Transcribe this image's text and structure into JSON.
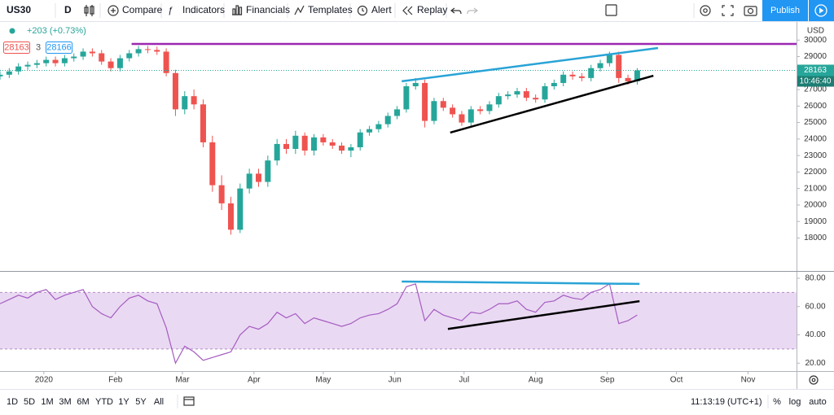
{
  "toolbar": {
    "symbol": "US30",
    "interval": "D",
    "buttons": [
      "Compare",
      "Indicators",
      "Financials",
      "Templates",
      "Alert",
      "Replay"
    ],
    "publish": "Publish"
  },
  "legend": {
    "change": "+203 (+0.73%)",
    "sell": "28163",
    "spread": "3",
    "buy": "28166"
  },
  "price_axis": {
    "currency": "USD",
    "countdown": "10:46:40"
  },
  "bottom_bar": {
    "ranges": [
      "1D",
      "5D",
      "1M",
      "3M",
      "6M",
      "YTD",
      "1Y",
      "5Y",
      "All"
    ],
    "time": "11:13:19 (UTC+1)",
    "options": [
      "%",
      "log",
      "auto"
    ]
  },
  "chart_data": [
    {
      "type": "candlestick",
      "x": [
        -19,
        -15,
        -11,
        -7,
        -3,
        1,
        5,
        9,
        13,
        17,
        21,
        25,
        29,
        33,
        37,
        41,
        45,
        49,
        53,
        57,
        61,
        65,
        69,
        73,
        77,
        81,
        85,
        89,
        93,
        97,
        101,
        105,
        109,
        113,
        117,
        121,
        125,
        129,
        133,
        137,
        141,
        145,
        149,
        153,
        157,
        161,
        165,
        169,
        173,
        177,
        181,
        185,
        189,
        193,
        197,
        201,
        205,
        209,
        213,
        217,
        221,
        225,
        229,
        233,
        237,
        241,
        245,
        249,
        253,
        257
      ],
      "open": [
        27800,
        27900,
        28100,
        28400,
        28500,
        28600,
        28800,
        28600,
        28900,
        29000,
        29300,
        29200,
        28700,
        28300,
        28900,
        29200,
        29450,
        29400,
        29300,
        28000,
        25800,
        26600,
        26100,
        23800,
        21200,
        20100,
        18500,
        21000,
        21900,
        21400,
        22700,
        23700,
        23400,
        24200,
        23300,
        24100,
        23800,
        23600,
        23300,
        23500,
        24400,
        24600,
        24900,
        25400,
        25800,
        27200,
        27400,
        25100,
        26300,
        25900,
        25500,
        25000,
        25800,
        25700,
        26100,
        26600,
        26700,
        26900,
        26500,
        26400,
        27200,
        27400,
        27900,
        27800,
        27700,
        28300,
        28600,
        29100,
        27700,
        27500
      ],
      "high": [
        28100,
        28300,
        28600,
        28700,
        28800,
        29000,
        29000,
        29100,
        29200,
        29500,
        29500,
        29400,
        28900,
        29100,
        29400,
        29650,
        29650,
        29600,
        29500,
        28200,
        26900,
        27000,
        26400,
        24200,
        21800,
        20500,
        21300,
        22200,
        22200,
        23000,
        24000,
        24000,
        24500,
        24400,
        24300,
        24300,
        24000,
        23800,
        23700,
        24600,
        24800,
        25100,
        25600,
        26000,
        27400,
        27700,
        27600,
        26500,
        26500,
        26100,
        25700,
        26000,
        26000,
        26300,
        26800,
        26900,
        27100,
        27100,
        26700,
        27400,
        27600,
        28100,
        28100,
        28000,
        28500,
        28800,
        29300,
        29300,
        27900,
        28300
      ],
      "low": [
        27600,
        27700,
        27900,
        28200,
        28300,
        28400,
        28400,
        28400,
        28700,
        28800,
        29000,
        28500,
        28100,
        28100,
        28700,
        29000,
        29200,
        29100,
        27800,
        25400,
        25500,
        25800,
        23500,
        20800,
        19700,
        18200,
        18300,
        20700,
        21100,
        21100,
        22400,
        23100,
        23100,
        23000,
        23000,
        23600,
        23400,
        23100,
        22900,
        23300,
        24200,
        24400,
        24700,
        25200,
        25600,
        27000,
        24700,
        24900,
        25700,
        25300,
        24800,
        24800,
        25500,
        25500,
        25900,
        26400,
        26500,
        26300,
        26200,
        26200,
        27000,
        27200,
        27600,
        27500,
        27500,
        28100,
        28400,
        27400,
        27300,
        27300
      ],
      "close": [
        27900,
        28100,
        28400,
        28500,
        28600,
        28800,
        28600,
        28900,
        29000,
        29300,
        29200,
        28700,
        28300,
        28900,
        29200,
        29450,
        29400,
        29300,
        28000,
        25800,
        26600,
        26100,
        23800,
        21200,
        20100,
        18500,
        21000,
        21900,
        21400,
        22700,
        23700,
        23400,
        24200,
        23300,
        24100,
        23800,
        23600,
        23300,
        23500,
        24400,
        24600,
        24900,
        25400,
        25800,
        27200,
        27400,
        25100,
        26300,
        25900,
        25500,
        25000,
        25800,
        25700,
        26100,
        26600,
        26700,
        26900,
        26500,
        26400,
        27200,
        27400,
        27900,
        27800,
        27700,
        28300,
        28600,
        29100,
        27700,
        27500,
        28163
      ],
      "colors": {
        "up": "#26a69a",
        "down": "#ef5350"
      },
      "last_price": 28163,
      "xlim": [
        -19,
        326
      ],
      "xticks": [
        {
          "value": 0,
          "label": "2020"
        },
        {
          "value": 31,
          "label": "Feb"
        },
        {
          "value": 60,
          "label": "Mar"
        },
        {
          "value": 91,
          "label": "Apr"
        },
        {
          "value": 121,
          "label": "May"
        },
        {
          "value": 152,
          "label": "Jun"
        },
        {
          "value": 182,
          "label": "Jul"
        },
        {
          "value": 213,
          "label": "Aug"
        },
        {
          "value": 244,
          "label": "Sep"
        },
        {
          "value": 274,
          "label": "Oct"
        },
        {
          "value": 305,
          "label": "Nov"
        }
      ],
      "ylim": [
        16000,
        30950
      ],
      "yticks": [
        18000,
        19000,
        20000,
        21000,
        22000,
        23000,
        24000,
        25000,
        26000,
        27000,
        28000,
        29000,
        30000
      ],
      "grid": false,
      "lines": [
        {
          "color": "#9c27b0",
          "points": [
            [
              38,
              29766
            ],
            [
              326,
              29766
            ]
          ]
        },
        {
          "color": "#29a3d6",
          "points": [
            [
              155,
              27500
            ],
            [
              266,
              29520
            ]
          ]
        },
        {
          "color": "#000000",
          "points": [
            [
              176,
              24390
            ],
            [
              264,
              27840
            ]
          ]
        }
      ]
    },
    {
      "type": "line",
      "color": "#a45cc0",
      "values": [
        62,
        65,
        68,
        66,
        70,
        72,
        65,
        68,
        70,
        72,
        60,
        55,
        52,
        60,
        66,
        68,
        64,
        62,
        45,
        20,
        32,
        28,
        22,
        24,
        26,
        28,
        40,
        46,
        44,
        48,
        56,
        52,
        55,
        48,
        52,
        50,
        48,
        46,
        48,
        52,
        54,
        55,
        58,
        62,
        74,
        76,
        50,
        58,
        54,
        52,
        50,
        56,
        55,
        58,
        62,
        62,
        64,
        58,
        56,
        63,
        64,
        68,
        66,
        65,
        70,
        72,
        76,
        48,
        50,
        54
      ],
      "ylim": [
        15,
        84
      ],
      "yticks": [
        {
          "value": 20,
          "label": "20.00"
        },
        {
          "value": 40,
          "label": "40.00"
        },
        {
          "value": 60,
          "label": "60.00"
        },
        {
          "value": 80,
          "label": "80.00"
        }
      ],
      "band": [
        30,
        70
      ],
      "band_color": "#ead9f3",
      "lines": [
        {
          "color": "#29a3d6",
          "points": [
            [
              155,
              77.7
            ],
            [
              258,
              76
            ]
          ]
        },
        {
          "color": "#000000",
          "points": [
            [
              175,
              44.2
            ],
            [
              258,
              63.8
            ]
          ]
        }
      ]
    }
  ]
}
